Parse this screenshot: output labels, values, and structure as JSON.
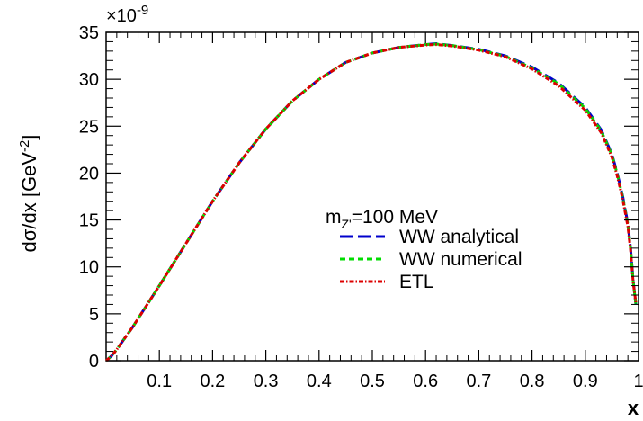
{
  "chart_data": {
    "type": "line",
    "xlabel": "x",
    "ylabel": "dσ/dx [GeV",
    "ylabel_sup": "-2",
    "ylabel_close": "]",
    "y_multiplier": "×10",
    "y_multiplier_exp": "-9",
    "xlim": [
      0.0,
      1.0
    ],
    "ylim": [
      0,
      35
    ],
    "x_ticks": [
      0.1,
      0.2,
      0.3,
      0.4,
      0.5,
      0.6,
      0.7,
      0.8,
      0.9,
      1
    ],
    "x_tick_labels": [
      "0.1",
      "0.2",
      "0.3",
      "0.4",
      "0.5",
      "0.6",
      "0.7",
      "0.8",
      "0.9",
      "1"
    ],
    "y_ticks": [
      0,
      5,
      10,
      15,
      20,
      25,
      30,
      35
    ],
    "y_tick_labels": [
      "0",
      "5",
      "10",
      "15",
      "20",
      "25",
      "30",
      "35"
    ],
    "grid": false,
    "legend": {
      "header": "m",
      "header_sub": "Z'",
      "header_value": "=100 MeV",
      "placement": "center-right"
    },
    "x": [
      0.0,
      0.01,
      0.02,
      0.03,
      0.05,
      0.075,
      0.1,
      0.15,
      0.2,
      0.25,
      0.3,
      0.35,
      0.4,
      0.45,
      0.5,
      0.55,
      0.6,
      0.62,
      0.65,
      0.7,
      0.75,
      0.8,
      0.85,
      0.9,
      0.93,
      0.95,
      0.96,
      0.97,
      0.98,
      0.985,
      0.99,
      0.995
    ],
    "series": [
      {
        "name": "WW analytical",
        "color": "#0000cc",
        "style": "long-dash",
        "values": [
          0.0,
          0.5,
          1.2,
          2.0,
          3.6,
          5.8,
          8.0,
          12.5,
          17.0,
          21.1,
          24.7,
          27.7,
          30.0,
          31.8,
          32.8,
          33.4,
          33.7,
          33.8,
          33.6,
          33.2,
          32.5,
          31.3,
          29.6,
          27.0,
          24.6,
          22.0,
          20.0,
          17.6,
          14.6,
          12.0,
          8.5,
          6.0
        ]
      },
      {
        "name": "WW numerical",
        "color": "#00dd00",
        "style": "short-dash",
        "values": [
          0.0,
          0.5,
          1.2,
          2.0,
          3.6,
          5.8,
          8.0,
          12.5,
          17.0,
          21.1,
          24.7,
          27.7,
          30.0,
          31.8,
          32.8,
          33.4,
          33.7,
          33.75,
          33.6,
          33.15,
          32.45,
          31.2,
          29.5,
          26.9,
          24.5,
          21.9,
          19.9,
          17.5,
          14.5,
          11.9,
          8.4,
          6.0
        ]
      },
      {
        "name": "ETL",
        "color": "#dd0000",
        "style": "dash-dot",
        "values": [
          0.0,
          0.5,
          1.2,
          2.0,
          3.6,
          5.8,
          8.0,
          12.5,
          17.0,
          21.1,
          24.7,
          27.7,
          30.0,
          31.8,
          32.8,
          33.4,
          33.65,
          33.7,
          33.55,
          33.1,
          32.4,
          31.1,
          29.3,
          26.7,
          24.3,
          21.7,
          19.7,
          17.3,
          14.3,
          11.8,
          8.3,
          6.2
        ]
      }
    ]
  }
}
